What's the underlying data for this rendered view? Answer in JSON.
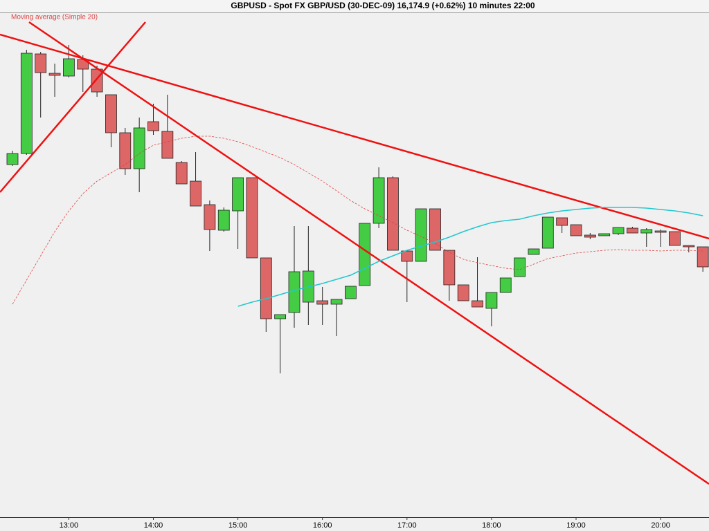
{
  "chart_data": {
    "type": "candlestick",
    "title": "GBPUSD - Spot FX GBP/USD (30-DEC-09)   16,174.9 (+0.62%)   10 minutes  22:00",
    "categories": [
      null,
      null,
      null,
      null,
      "13:00",
      null,
      null,
      null,
      null,
      null,
      "14:00",
      null,
      null,
      null,
      null,
      null,
      "15:00",
      null,
      null,
      null,
      null,
      null,
      "16:00",
      null,
      null,
      null,
      null,
      null,
      "17:00",
      null,
      null,
      null,
      null,
      null,
      "18:00",
      null,
      null,
      null,
      null,
      null,
      "19:00",
      null,
      null,
      null,
      null,
      null,
      "20:00",
      null,
      null,
      null
    ],
    "open": [
      510,
      526,
      670,
      642,
      638,
      662,
      648,
      611,
      556,
      504,
      572,
      558,
      513,
      486,
      452,
      415,
      443,
      491,
      375,
      287,
      296,
      311,
      313,
      308,
      316,
      335,
      425,
      491,
      385,
      370,
      446,
      386,
      336,
      313,
      302,
      325,
      348,
      380,
      389,
      433,
      423,
      408,
      407,
      410,
      418,
      411,
      414,
      413,
      393,
      391
    ],
    "high": [
      530,
      676,
      673,
      656,
      683,
      668,
      653,
      611,
      563,
      578,
      598,
      611,
      515,
      528,
      458,
      448,
      491,
      491,
      375,
      293,
      421,
      421,
      333,
      315,
      334,
      425,
      506,
      493,
      385,
      446,
      446,
      386,
      336,
      376,
      325,
      346,
      375,
      388,
      434,
      433,
      423,
      411,
      410,
      419,
      420,
      418,
      416,
      413,
      393,
      391
    ],
    "low": [
      508,
      524,
      578,
      608,
      636,
      615,
      608,
      535,
      495,
      470,
      553,
      519,
      482,
      450,
      385,
      413,
      388,
      375,
      268,
      208,
      274,
      278,
      278,
      262,
      316,
      335,
      418,
      386,
      311,
      370,
      386,
      313,
      313,
      304,
      276,
      325,
      348,
      380,
      389,
      411,
      407,
      402,
      407,
      408,
      411,
      391,
      391,
      393,
      383,
      355
    ],
    "close": [
      526,
      671,
      643,
      639,
      663,
      648,
      615,
      556,
      504,
      563,
      559,
      519,
      482,
      450,
      416,
      444,
      491,
      375,
      287,
      293,
      355,
      356,
      308,
      315,
      334,
      425,
      491,
      386,
      370,
      446,
      386,
      336,
      313,
      304,
      325,
      346,
      375,
      388,
      434,
      422,
      407,
      405,
      410,
      419,
      411,
      416,
      412,
      393,
      391,
      362
    ],
    "up_color": "#44cc44",
    "down_color": "#dd6666",
    "series": [
      {
        "name": "Moving average (Simple 20)",
        "color": "#dd4444",
        "dashed": true,
        "values": [
          308,
          343,
          378,
          413,
          443,
          468,
          486,
          498,
          510,
          526,
          538,
          543,
          548,
          551,
          551,
          548,
          543,
          536,
          528,
          520,
          510,
          498,
          486,
          472,
          458,
          446,
          436,
          426,
          415,
          406,
          396,
          383,
          373,
          368,
          364,
          360,
          358,
          366,
          374,
          378,
          382,
          384,
          386,
          387,
          386,
          386,
          385,
          386,
          386,
          385
        ]
      },
      {
        "color": "#22c8d0",
        "dashed": false,
        "values": [
          null,
          null,
          null,
          null,
          null,
          null,
          null,
          null,
          null,
          null,
          null,
          null,
          null,
          null,
          null,
          null,
          305,
          311,
          316,
          322,
          328,
          333,
          338,
          344,
          350,
          360,
          370,
          378,
          386,
          392,
          398,
          405,
          413,
          420,
          426,
          429,
          431,
          436,
          440,
          443,
          445,
          447,
          448,
          448,
          448,
          447,
          445,
          443,
          440,
          436
        ]
      }
    ],
    "ylim": [
      0,
      730
    ]
  }
}
